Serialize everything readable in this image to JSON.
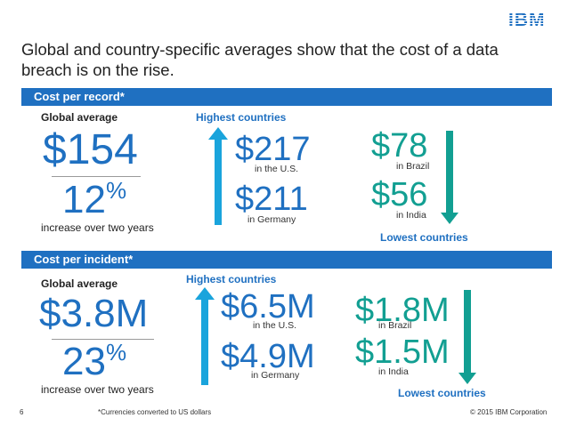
{
  "brand": {
    "logo_text": "IBM",
    "accent": "#1f70c1",
    "teal": "#129f92"
  },
  "slide": {
    "title": "Global and country-specific averages show that the cost of a data breach is on the rise."
  },
  "record": {
    "header": "Cost per record*",
    "global_label": "Global average",
    "global_value": "$154",
    "increase_value": "12",
    "increase_unit": "%",
    "increase_text": "increase over two years",
    "highest_label": "Highest countries",
    "highest": [
      {
        "value": "$217",
        "country": "in the U.S."
      },
      {
        "value": "$211",
        "country": "in Germany"
      }
    ],
    "lowest_label": "Lowest countries",
    "lowest": [
      {
        "value": "$78",
        "country": "in Brazil"
      },
      {
        "value": "$56",
        "country": "in India"
      }
    ]
  },
  "incident": {
    "header": "Cost per incident*",
    "global_label": "Global average",
    "global_value": "$3.8M",
    "increase_value": "23",
    "increase_unit": "%",
    "increase_text": "increase over two years",
    "highest_label": "Highest countries",
    "highest": [
      {
        "value": "$6.5M",
        "country": "in the U.S."
      },
      {
        "value": "$4.9M",
        "country": "in Germany"
      }
    ],
    "lowest_label": "Lowest countries",
    "lowest": [
      {
        "value": "$1.8M",
        "country": "in Brazil"
      },
      {
        "value": "$1.5M",
        "country": "in India"
      }
    ]
  },
  "footer": {
    "page_number": "6",
    "footnote": "*Currencies converted to US dollars",
    "copyright": "© 2015 IBM Corporation"
  }
}
